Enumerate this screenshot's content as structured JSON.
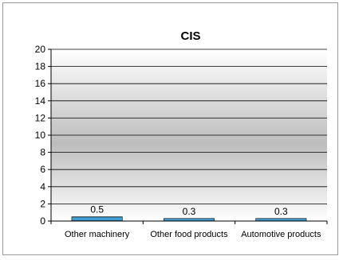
{
  "chart_data": {
    "type": "bar",
    "title": "CIS",
    "categories": [
      "Other machinery",
      "Other food products",
      "Automotive products"
    ],
    "values": [
      0.5,
      0.3,
      0.3
    ],
    "data_labels": [
      "0.5",
      "0.3",
      "0.3"
    ],
    "xlabel": "",
    "ylabel": "",
    "ylim": [
      0,
      20
    ],
    "yticks": [
      0,
      2,
      4,
      6,
      8,
      10,
      12,
      14,
      16,
      18,
      20
    ],
    "grid": true,
    "legend": "none",
    "colors": {
      "bar": "#1f5f8f",
      "bar_highlight": "#4fb3e8",
      "plot_bg_top": "#ffffff",
      "plot_bg_mid": "#bdbdbd",
      "gridline": "#000000"
    }
  }
}
